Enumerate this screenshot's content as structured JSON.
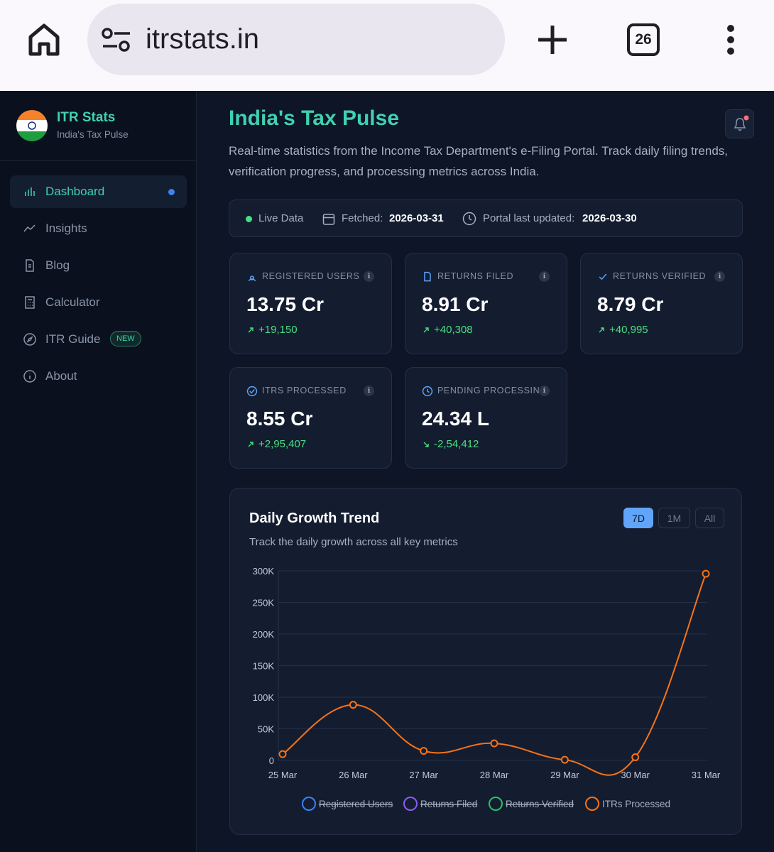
{
  "browser": {
    "url": "itrstats.in",
    "tabs": "26"
  },
  "sidebar": {
    "brand": "ITR Stats",
    "tagline": "India's Tax Pulse",
    "nav": [
      {
        "label": "Dashboard",
        "active": true
      },
      {
        "label": "Insights"
      },
      {
        "label": "Blog"
      },
      {
        "label": "Calculator"
      },
      {
        "label": "ITR Guide",
        "badge": "NEW"
      },
      {
        "label": "About"
      }
    ]
  },
  "header": {
    "title": "India's Tax Pulse",
    "description": "Real-time statistics from the Income Tax Department's e-Filing Portal. Track daily filing trends, verification progress, and processing metrics across India."
  },
  "status": {
    "live": "Live Data",
    "fetched_label": "Fetched:",
    "fetched": "2026-03-31",
    "updated_label": "Portal last updated:",
    "updated": "2026-03-30"
  },
  "stats": [
    {
      "label": "REGISTERED USERS",
      "value": "13.75 Cr",
      "change": "+19,150",
      "trend": "up"
    },
    {
      "label": "RETURNS FILED",
      "value": "8.91 Cr",
      "change": "+40,308",
      "trend": "up"
    },
    {
      "label": "RETURNS VERIFIED",
      "value": "8.79 Cr",
      "change": "+40,995",
      "trend": "up"
    },
    {
      "label": "ITRS PROCESSED",
      "value": "8.55 Cr",
      "change": "+2,95,407",
      "trend": "up"
    },
    {
      "label": "PENDING PROCESSING",
      "value": "24.34 L",
      "change": "-2,54,412",
      "trend": "down"
    }
  ],
  "chart_data": {
    "type": "line",
    "title": "Daily Growth Trend",
    "subtitle": "Track the daily growth across all key metrics",
    "ranges": [
      {
        "label": "7D",
        "active": true
      },
      {
        "label": "1M"
      },
      {
        "label": "All"
      }
    ],
    "categories": [
      "25 Mar",
      "26 Mar",
      "27 Mar",
      "28 Mar",
      "29 Mar",
      "30 Mar",
      "31 Mar"
    ],
    "series": [
      {
        "name": "Registered Users",
        "color": "#3b82f6",
        "hidden": true
      },
      {
        "name": "Returns Filed",
        "color": "#8b5cf6",
        "hidden": true
      },
      {
        "name": "Returns Verified",
        "color": "#22c55e",
        "hidden": true
      },
      {
        "name": "ITRs Processed",
        "color": "#f97316",
        "values": [
          10000,
          88000,
          15000,
          27000,
          1000,
          5000,
          295407
        ]
      }
    ],
    "ylim": [
      0,
      300000
    ],
    "yticks": [
      0,
      {
        "value": 50000,
        "label": "50K"
      },
      {
        "value": 100000,
        "label": "100K"
      },
      {
        "value": 150000,
        "label": "150K"
      },
      {
        "value": 200000,
        "label": "200K"
      },
      {
        "value": 250000,
        "label": "250K"
      },
      {
        "value": 300000,
        "label": "300K"
      }
    ],
    "grid": true
  }
}
